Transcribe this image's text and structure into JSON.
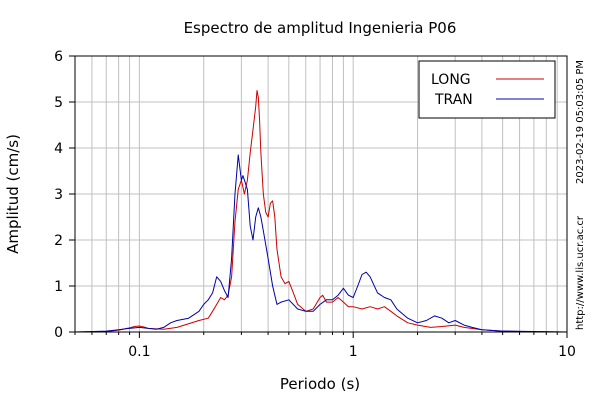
{
  "chart_data": {
    "type": "line",
    "title": "Espectro de amplitud Ingenieria P06",
    "xlabel": "Periodo (s)",
    "ylabel": "Amplitud (cm/s)",
    "xscale": "log",
    "xlim": [
      0.05,
      10
    ],
    "ylim": [
      0,
      6
    ],
    "x_ticks": [
      {
        "value": 0.1,
        "label": "0.1"
      },
      {
        "value": 1,
        "label": "1"
      },
      {
        "value": 10,
        "label": "10"
      }
    ],
    "y_ticks": [
      0,
      1,
      2,
      3,
      4,
      5,
      6
    ],
    "grid": true,
    "legend_position": "top-right",
    "side_label_timestamp": "2023-02-19 05:03:05 PM",
    "side_label_url": "http://www.lis.ucr.ac.cr",
    "series": [
      {
        "name": "LONG",
        "color": "#cc0000",
        "points": [
          [
            0.05,
            0.0
          ],
          [
            0.07,
            0.01
          ],
          [
            0.08,
            0.04
          ],
          [
            0.09,
            0.09
          ],
          [
            0.095,
            0.12
          ],
          [
            0.1,
            0.13
          ],
          [
            0.105,
            0.11
          ],
          [
            0.11,
            0.08
          ],
          [
            0.13,
            0.06
          ],
          [
            0.15,
            0.1
          ],
          [
            0.17,
            0.18
          ],
          [
            0.19,
            0.25
          ],
          [
            0.21,
            0.3
          ],
          [
            0.22,
            0.45
          ],
          [
            0.23,
            0.6
          ],
          [
            0.24,
            0.75
          ],
          [
            0.25,
            0.7
          ],
          [
            0.26,
            0.8
          ],
          [
            0.27,
            1.2
          ],
          [
            0.28,
            2.4
          ],
          [
            0.29,
            3.1
          ],
          [
            0.3,
            3.3
          ],
          [
            0.31,
            3.0
          ],
          [
            0.32,
            3.3
          ],
          [
            0.33,
            3.9
          ],
          [
            0.34,
            4.4
          ],
          [
            0.35,
            4.9
          ],
          [
            0.355,
            5.25
          ],
          [
            0.36,
            5.1
          ],
          [
            0.365,
            4.6
          ],
          [
            0.37,
            3.9
          ],
          [
            0.38,
            3.0
          ],
          [
            0.39,
            2.6
          ],
          [
            0.4,
            2.5
          ],
          [
            0.41,
            2.8
          ],
          [
            0.42,
            2.85
          ],
          [
            0.43,
            2.5
          ],
          [
            0.44,
            1.8
          ],
          [
            0.46,
            1.2
          ],
          [
            0.48,
            1.05
          ],
          [
            0.5,
            1.1
          ],
          [
            0.52,
            0.9
          ],
          [
            0.55,
            0.6
          ],
          [
            0.6,
            0.45
          ],
          [
            0.65,
            0.5
          ],
          [
            0.7,
            0.75
          ],
          [
            0.72,
            0.8
          ],
          [
            0.75,
            0.65
          ],
          [
            0.8,
            0.65
          ],
          [
            0.85,
            0.75
          ],
          [
            0.9,
            0.65
          ],
          [
            0.95,
            0.55
          ],
          [
            1.0,
            0.55
          ],
          [
            1.1,
            0.5
          ],
          [
            1.2,
            0.55
          ],
          [
            1.3,
            0.5
          ],
          [
            1.4,
            0.55
          ],
          [
            1.5,
            0.45
          ],
          [
            1.6,
            0.35
          ],
          [
            1.8,
            0.2
          ],
          [
            2.0,
            0.15
          ],
          [
            2.3,
            0.1
          ],
          [
            2.6,
            0.12
          ],
          [
            3.0,
            0.15
          ],
          [
            3.3,
            0.1
          ],
          [
            4.0,
            0.05
          ],
          [
            5.0,
            0.02
          ],
          [
            6.0,
            0.01
          ],
          [
            10.0,
            0.0
          ]
        ]
      },
      {
        "name": "TRAN",
        "color": "#0000aa",
        "points": [
          [
            0.05,
            0.0
          ],
          [
            0.07,
            0.02
          ],
          [
            0.08,
            0.05
          ],
          [
            0.09,
            0.08
          ],
          [
            0.1,
            0.1
          ],
          [
            0.11,
            0.08
          ],
          [
            0.12,
            0.06
          ],
          [
            0.13,
            0.1
          ],
          [
            0.14,
            0.2
          ],
          [
            0.15,
            0.25
          ],
          [
            0.17,
            0.3
          ],
          [
            0.19,
            0.45
          ],
          [
            0.2,
            0.6
          ],
          [
            0.21,
            0.7
          ],
          [
            0.22,
            0.85
          ],
          [
            0.23,
            1.2
          ],
          [
            0.24,
            1.1
          ],
          [
            0.25,
            0.9
          ],
          [
            0.26,
            0.75
          ],
          [
            0.27,
            1.6
          ],
          [
            0.28,
            3.0
          ],
          [
            0.29,
            3.85
          ],
          [
            0.3,
            3.3
          ],
          [
            0.305,
            3.4
          ],
          [
            0.31,
            3.3
          ],
          [
            0.32,
            3.1
          ],
          [
            0.33,
            2.3
          ],
          [
            0.34,
            2.0
          ],
          [
            0.35,
            2.5
          ],
          [
            0.36,
            2.7
          ],
          [
            0.37,
            2.5
          ],
          [
            0.38,
            2.2
          ],
          [
            0.4,
            1.6
          ],
          [
            0.42,
            1.0
          ],
          [
            0.44,
            0.6
          ],
          [
            0.46,
            0.65
          ],
          [
            0.5,
            0.7
          ],
          [
            0.55,
            0.5
          ],
          [
            0.6,
            0.45
          ],
          [
            0.65,
            0.45
          ],
          [
            0.7,
            0.6
          ],
          [
            0.75,
            0.7
          ],
          [
            0.8,
            0.7
          ],
          [
            0.85,
            0.8
          ],
          [
            0.9,
            0.95
          ],
          [
            0.95,
            0.8
          ],
          [
            1.0,
            0.75
          ],
          [
            1.05,
            1.0
          ],
          [
            1.1,
            1.25
          ],
          [
            1.15,
            1.3
          ],
          [
            1.2,
            1.2
          ],
          [
            1.3,
            0.85
          ],
          [
            1.4,
            0.75
          ],
          [
            1.5,
            0.7
          ],
          [
            1.6,
            0.5
          ],
          [
            1.8,
            0.3
          ],
          [
            2.0,
            0.2
          ],
          [
            2.2,
            0.25
          ],
          [
            2.4,
            0.35
          ],
          [
            2.6,
            0.3
          ],
          [
            2.8,
            0.2
          ],
          [
            3.0,
            0.25
          ],
          [
            3.3,
            0.15
          ],
          [
            3.6,
            0.1
          ],
          [
            4.0,
            0.05
          ],
          [
            5.0,
            0.02
          ],
          [
            10.0,
            0.0
          ]
        ]
      }
    ]
  }
}
